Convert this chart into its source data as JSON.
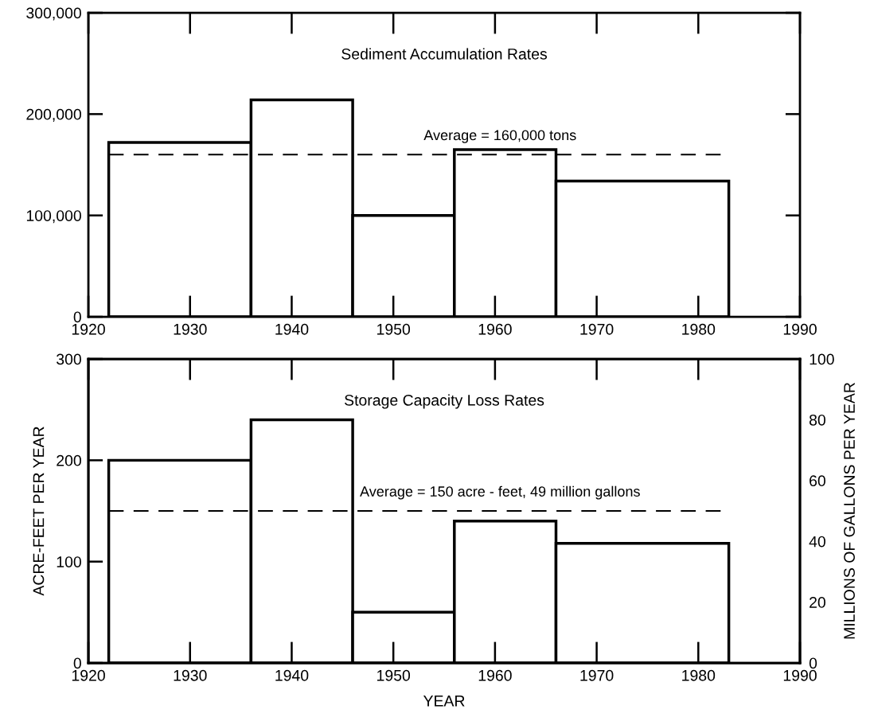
{
  "chart_data": [
    {
      "type": "histogram",
      "title": "Sediment Accumulation Rates",
      "bins": [
        1922,
        1936,
        1946,
        1956,
        1966,
        1983
      ],
      "values": [
        172000,
        214000,
        100000,
        165000,
        134000
      ],
      "color": "#000000",
      "xlim": [
        1920,
        1990
      ],
      "xticks": [
        1920,
        1930,
        1940,
        1950,
        1960,
        1970,
        1980,
        1990
      ],
      "ylim": [
        0,
        300000
      ],
      "yticks": [
        {
          "value": 0,
          "label": "0"
        },
        {
          "value": 100000,
          "label": "100,000"
        },
        {
          "value": 200000,
          "label": "200,000"
        },
        {
          "value": 300000,
          "label": "300,000"
        }
      ],
      "ref_lines": [
        {
          "axis": "y",
          "value": 160000,
          "label": "Average = 160,000 tons",
          "color": "#000000",
          "line_style": "dashed"
        }
      ],
      "grid": false,
      "legend": false
    },
    {
      "type": "histogram",
      "title": "Storage Capacity Loss Rates",
      "xlabel": "YEAR",
      "ylabel": "ACRE-FEET PER YEAR",
      "y2label": "MILLIONS OF GALLONS PER YEAR",
      "bins": [
        1922,
        1936,
        1946,
        1956,
        1966,
        1983
      ],
      "values": [
        200,
        240,
        50,
        140,
        118
      ],
      "color": "#000000",
      "xlim": [
        1920,
        1990
      ],
      "xticks": [
        1920,
        1930,
        1940,
        1950,
        1960,
        1970,
        1980,
        1990
      ],
      "ylim": [
        0,
        300
      ],
      "yticks": [
        0,
        100,
        200,
        300
      ],
      "y2lim": [
        0,
        100
      ],
      "y2ticks": [
        0,
        20,
        40,
        60,
        80,
        100
      ],
      "ref_lines": [
        {
          "axis": "y",
          "value": 150,
          "label": "Average = 150 acre - feet, 49 million gallons",
          "color": "#000000",
          "line_style": "dashed"
        }
      ],
      "grid": false,
      "legend": false
    }
  ]
}
